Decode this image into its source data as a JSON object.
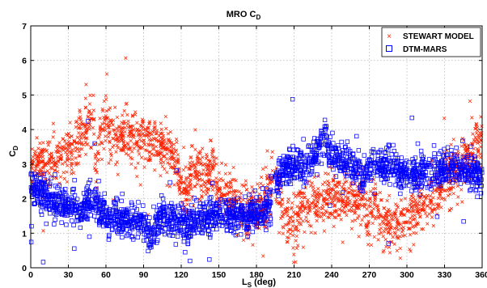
{
  "chart_data": {
    "type": "scatter",
    "title": "MRO C",
    "title_sub": "D",
    "xlabel": "L",
    "xlabel_sub": "S",
    "xlabel_unit": "(deg)",
    "ylabel": "C",
    "ylabel_sub": "D",
    "xlim": [
      0,
      360
    ],
    "ylim": [
      0,
      7
    ],
    "xticks": [
      "0",
      "30",
      "60",
      "90",
      "120",
      "150",
      "180",
      "210",
      "240",
      "270",
      "300",
      "330",
      "360"
    ],
    "yticks": [
      "0",
      "1",
      "2",
      "3",
      "4",
      "5",
      "6",
      "7"
    ],
    "grid": true,
    "legend_position": "top-right",
    "series": [
      {
        "name": "STEWART MODEL",
        "marker": "x",
        "color": "#ff2200",
        "trend": [
          [
            0,
            3.0
          ],
          [
            10,
            2.9
          ],
          [
            20,
            3.1
          ],
          [
            30,
            3.3
          ],
          [
            40,
            3.8
          ],
          [
            45,
            4.1
          ],
          [
            50,
            4.3
          ],
          [
            52,
            2.3
          ],
          [
            55,
            3.9
          ],
          [
            60,
            4.2
          ],
          [
            65,
            3.8
          ],
          [
            70,
            3.7
          ],
          [
            80,
            3.8
          ],
          [
            90,
            3.6
          ],
          [
            100,
            3.5
          ],
          [
            110,
            3.4
          ],
          [
            115,
            3.0
          ],
          [
            120,
            2.4
          ],
          [
            125,
            2.0
          ],
          [
            130,
            3.0
          ],
          [
            135,
            2.7
          ],
          [
            140,
            2.6
          ],
          [
            145,
            3.0
          ],
          [
            150,
            2.1
          ],
          [
            160,
            2.0
          ],
          [
            170,
            1.7
          ],
          [
            180,
            1.6
          ],
          [
            190,
            2.2
          ],
          [
            195,
            2.8
          ],
          [
            200,
            1.8
          ],
          [
            205,
            1.4
          ],
          [
            210,
            1.4
          ],
          [
            220,
            1.8
          ],
          [
            230,
            2.0
          ],
          [
            240,
            2.0
          ],
          [
            250,
            2.0
          ],
          [
            260,
            1.9
          ],
          [
            265,
            2.3
          ],
          [
            268,
            1.5
          ],
          [
            275,
            2.0
          ],
          [
            280,
            1.2
          ],
          [
            290,
            1.2
          ],
          [
            300,
            1.3
          ],
          [
            310,
            1.7
          ],
          [
            320,
            2.0
          ],
          [
            330,
            2.5
          ],
          [
            340,
            2.8
          ],
          [
            350,
            3.2
          ],
          [
            360,
            3.8
          ]
        ]
      },
      {
        "name": "DTM-MARS",
        "marker": "square",
        "color": "#0000ff",
        "trend": [
          [
            0,
            2.3
          ],
          [
            10,
            2.1
          ],
          [
            20,
            1.9
          ],
          [
            30,
            1.8
          ],
          [
            40,
            1.7
          ],
          [
            45,
            1.9
          ],
          [
            50,
            2.1
          ],
          [
            52,
            2.0
          ],
          [
            55,
            1.7
          ],
          [
            60,
            1.5
          ],
          [
            70,
            1.5
          ],
          [
            80,
            1.4
          ],
          [
            90,
            1.3
          ],
          [
            95,
            0.9
          ],
          [
            100,
            1.3
          ],
          [
            110,
            1.5
          ],
          [
            120,
            1.4
          ],
          [
            125,
            1.2
          ],
          [
            130,
            1.4
          ],
          [
            140,
            1.4
          ],
          [
            150,
            1.4
          ],
          [
            160,
            1.5
          ],
          [
            170,
            1.5
          ],
          [
            180,
            1.6
          ],
          [
            190,
            1.8
          ],
          [
            195,
            2.5
          ],
          [
            200,
            2.8
          ],
          [
            210,
            2.9
          ],
          [
            220,
            3.0
          ],
          [
            230,
            3.5
          ],
          [
            235,
            3.8
          ],
          [
            240,
            3.3
          ],
          [
            250,
            3.0
          ],
          [
            260,
            2.9
          ],
          [
            265,
            2.6
          ],
          [
            270,
            2.9
          ],
          [
            280,
            3.0
          ],
          [
            290,
            2.9
          ],
          [
            300,
            2.7
          ],
          [
            310,
            2.7
          ],
          [
            320,
            2.8
          ],
          [
            330,
            2.8
          ],
          [
            340,
            2.9
          ],
          [
            350,
            2.7
          ],
          [
            360,
            2.7
          ]
        ]
      }
    ]
  }
}
